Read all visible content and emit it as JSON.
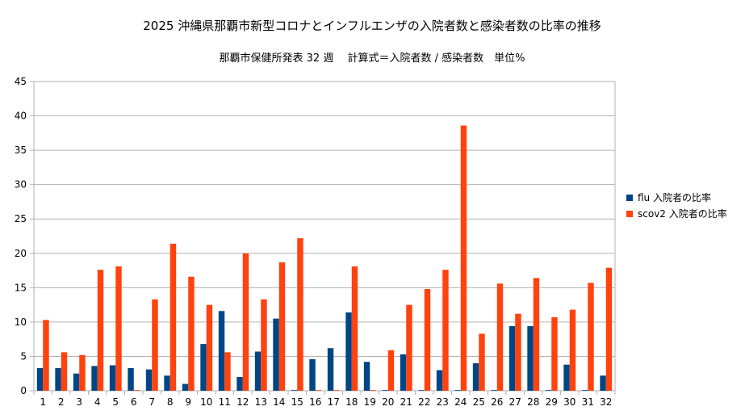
{
  "chart_data": {
    "type": "bar",
    "title": "2025 沖縄県那覇市新型コロナとインフルエンザの入院者数と感染者数の比率の推移",
    "subtitle": "那覇市保健所発表 32 週　 計算式＝入院者数 / 感染者数　単位%",
    "categories": [
      "1",
      "2",
      "3",
      "4",
      "5",
      "6",
      "7",
      "8",
      "9",
      "10",
      "11",
      "12",
      "13",
      "14",
      "15",
      "16",
      "17",
      "18",
      "19",
      "20",
      "21",
      "22",
      "23",
      "24",
      "25",
      "26",
      "27",
      "28",
      "29",
      "30",
      "31",
      "32"
    ],
    "ylim": [
      0,
      45
    ],
    "yticks": [
      "0",
      "5",
      "10",
      "15",
      "20",
      "25",
      "30",
      "35",
      "40",
      "45"
    ],
    "grid": true,
    "legend_position": "right",
    "series": [
      {
        "name": "flu 入院者の比率",
        "color": "#004586",
        "values": [
          3.3,
          3.3,
          2.5,
          3.6,
          3.7,
          3.3,
          3.1,
          2.2,
          1.0,
          6.8,
          11.6,
          2.0,
          5.7,
          10.5,
          0.1,
          4.6,
          6.2,
          11.4,
          4.2,
          0.1,
          5.3,
          0.1,
          3.0,
          0.1,
          4.0,
          0.1,
          9.4,
          9.4,
          0.1,
          3.8,
          0.1,
          2.2
        ]
      },
      {
        "name": "scov2 入院者の比率",
        "color": "#ff420e",
        "values": [
          10.3,
          5.6,
          5.2,
          17.6,
          18.1,
          0.1,
          13.3,
          21.4,
          16.6,
          12.5,
          5.6,
          20.0,
          13.3,
          18.7,
          22.2,
          0.1,
          0.1,
          18.1,
          0.1,
          5.9,
          12.5,
          14.8,
          17.6,
          38.6,
          8.3,
          15.6,
          11.2,
          16.4,
          10.7,
          11.8,
          15.7,
          17.9
        ]
      }
    ]
  }
}
